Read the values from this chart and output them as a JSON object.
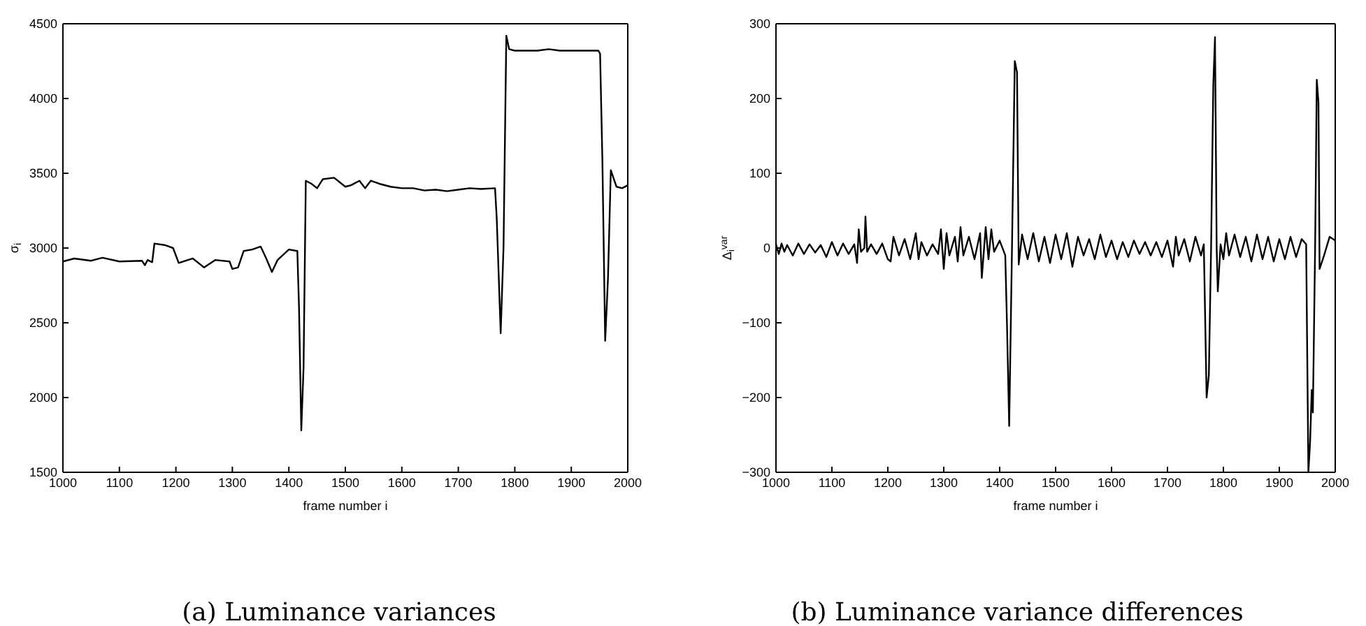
{
  "chart_data": [
    {
      "type": "line",
      "title": "(a) Luminance variances",
      "xlabel": "frame number i",
      "ylabel": "σ$_{i}$",
      "xlim": [
        1000,
        2000
      ],
      "xticks": [
        1000,
        1100,
        1200,
        1300,
        1400,
        1500,
        1600,
        1700,
        1800,
        1900,
        2000
      ],
      "ylim": [
        1500,
        4500
      ],
      "yticks": [
        1500,
        2000,
        2500,
        3000,
        3500,
        4000,
        4500
      ],
      "marker": "none",
      "line_style": "solid",
      "series": [
        {
          "color": "#000000",
          "x": [
            1000,
            1020,
            1050,
            1070,
            1100,
            1140,
            1145,
            1150,
            1158,
            1162,
            1180,
            1195,
            1205,
            1230,
            1250,
            1270,
            1295,
            1300,
            1310,
            1320,
            1335,
            1350,
            1360,
            1370,
            1380,
            1400,
            1415,
            1418,
            1422,
            1426,
            1430,
            1440,
            1450,
            1460,
            1480,
            1500,
            1510,
            1525,
            1535,
            1545,
            1560,
            1580,
            1600,
            1620,
            1640,
            1660,
            1680,
            1700,
            1720,
            1740,
            1765,
            1768,
            1775,
            1780,
            1785,
            1790,
            1800,
            1820,
            1840,
            1860,
            1880,
            1900,
            1920,
            1948,
            1951,
            1955,
            1960,
            1965,
            1970,
            1980,
            1990,
            2000
          ],
          "values": [
            2910,
            2930,
            2915,
            2935,
            2910,
            2915,
            2885,
            2920,
            2905,
            3030,
            3020,
            3000,
            2900,
            2930,
            2870,
            2920,
            2910,
            2860,
            2870,
            2980,
            2990,
            3010,
            2930,
            2840,
            2920,
            2990,
            2980,
            2600,
            1780,
            2200,
            3450,
            3430,
            3400,
            3460,
            3470,
            3410,
            3420,
            3450,
            3400,
            3450,
            3430,
            3410,
            3400,
            3400,
            3385,
            3390,
            3380,
            3390,
            3400,
            3395,
            3400,
            3200,
            2430,
            3000,
            4420,
            4330,
            4320,
            4320,
            4320,
            4330,
            4320,
            4320,
            4320,
            4320,
            4300,
            3600,
            2380,
            2800,
            3520,
            3410,
            3400,
            3420
          ]
        }
      ]
    },
    {
      "type": "line",
      "title": "(b) Luminance variance differences",
      "xlabel": "frame number i",
      "ylabel": "Δ$_{i}$$^{var}$",
      "xlim": [
        1000,
        2000
      ],
      "xticks": [
        1000,
        1100,
        1200,
        1300,
        1400,
        1500,
        1600,
        1700,
        1800,
        1900,
        2000
      ],
      "ylim": [
        -300,
        300
      ],
      "yticks": [
        {
          "value": -300,
          "label": "−300"
        },
        {
          "value": -200,
          "label": "−200"
        },
        {
          "value": -100,
          "label": "−100"
        },
        0,
        100,
        200,
        300
      ],
      "marker": "none",
      "line_style": "solid",
      "series": [
        {
          "color": "#000000",
          "x": [
            1000,
            1005,
            1010,
            1015,
            1020,
            1030,
            1040,
            1050,
            1060,
            1070,
            1080,
            1090,
            1100,
            1110,
            1120,
            1130,
            1140,
            1145,
            1148,
            1152,
            1158,
            1160,
            1163,
            1170,
            1180,
            1190,
            1200,
            1205,
            1210,
            1220,
            1230,
            1240,
            1250,
            1255,
            1260,
            1270,
            1280,
            1290,
            1295,
            1300,
            1305,
            1310,
            1320,
            1325,
            1330,
            1335,
            1345,
            1355,
            1365,
            1368,
            1375,
            1380,
            1385,
            1390,
            1400,
            1410,
            1413,
            1417,
            1422,
            1427,
            1431,
            1434,
            1440,
            1450,
            1460,
            1470,
            1480,
            1490,
            1500,
            1510,
            1520,
            1530,
            1540,
            1550,
            1560,
            1570,
            1580,
            1590,
            1600,
            1610,
            1620,
            1630,
            1640,
            1650,
            1660,
            1670,
            1680,
            1690,
            1700,
            1710,
            1715,
            1720,
            1730,
            1740,
            1750,
            1760,
            1765,
            1770,
            1774,
            1778,
            1782,
            1785,
            1788,
            1790,
            1795,
            1800,
            1805,
            1810,
            1820,
            1830,
            1840,
            1850,
            1860,
            1870,
            1880,
            1890,
            1900,
            1910,
            1920,
            1930,
            1940,
            1948,
            1952,
            1955,
            1958,
            1960,
            1964,
            1967,
            1970,
            1972,
            1980,
            1990,
            2000
          ],
          "values": [
            5,
            -8,
            6,
            -5,
            4,
            -10,
            6,
            -8,
            5,
            -6,
            4,
            -12,
            8,
            -10,
            6,
            -8,
            5,
            -20,
            25,
            -5,
            0,
            42,
            -5,
            5,
            -8,
            6,
            -15,
            -18,
            15,
            -10,
            12,
            -15,
            20,
            -15,
            8,
            -10,
            5,
            -8,
            25,
            -28,
            20,
            -10,
            15,
            -18,
            28,
            -10,
            15,
            -15,
            20,
            -40,
            28,
            -15,
            25,
            -5,
            10,
            -10,
            -100,
            -238,
            0,
            250,
            235,
            -22,
            18,
            -15,
            20,
            -18,
            15,
            -20,
            18,
            -15,
            20,
            -25,
            15,
            -10,
            12,
            -15,
            18,
            -12,
            10,
            -15,
            8,
            -12,
            10,
            -8,
            8,
            -10,
            8,
            -12,
            10,
            -25,
            15,
            -10,
            12,
            -18,
            15,
            -10,
            5,
            -200,
            -170,
            0,
            220,
            282,
            0,
            -58,
            5,
            -15,
            20,
            -10,
            18,
            -12,
            15,
            -18,
            18,
            -15,
            15,
            -18,
            12,
            -15,
            15,
            -12,
            12,
            5,
            -300,
            -260,
            -190,
            -220,
            0,
            225,
            195,
            -28,
            -10,
            15,
            10
          ]
        }
      ]
    }
  ]
}
